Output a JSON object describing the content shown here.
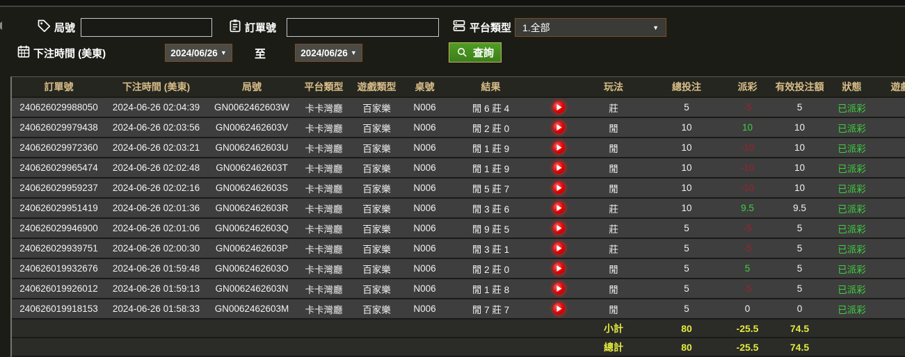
{
  "filters": {
    "game_no_label": "局號",
    "order_no_label": "訂單號",
    "platform_type_label": "平台類型",
    "platform_type_value": "1.全部",
    "bet_time_label": "下注時間 (美東)",
    "date_from": "2024/06/26",
    "to_label": "至",
    "date_to": "2024/06/26",
    "search_button_label": "查詢",
    "game_no_value": "",
    "order_no_value": ""
  },
  "table": {
    "columns": [
      "訂單號",
      "下注時間 (美東)",
      "局號",
      "平台類型",
      "遊戲類型",
      "桌號",
      "結果",
      "",
      "玩法",
      "總投注",
      "派彩",
      "有效投注額",
      "狀態",
      "遊戲"
    ],
    "column_keys": [
      "order_no",
      "bet_time",
      "game_no",
      "platform",
      "game_type",
      "table_no",
      "result",
      null,
      "play_method",
      "total_bet",
      "payout",
      "valid_bet",
      "status",
      "game"
    ],
    "rows": [
      {
        "order_no": "240626029988050",
        "bet_time": "2024-06-26 02:04:39",
        "game_no": "GN0062462603W",
        "platform": "卡卡灣廳",
        "game_type": "百家樂",
        "table_no": "N006",
        "result": "閒 6 莊 4",
        "play_method": "莊",
        "total_bet": "5",
        "payout": "-5",
        "valid_bet": "5",
        "status": "已派彩",
        "game": ""
      },
      {
        "order_no": "240626029979438",
        "bet_time": "2024-06-26 02:03:56",
        "game_no": "GN0062462603V",
        "platform": "卡卡灣廳",
        "game_type": "百家樂",
        "table_no": "N006",
        "result": "閒 2 莊 0",
        "play_method": "閒",
        "total_bet": "10",
        "payout": "10",
        "valid_bet": "10",
        "status": "已派彩",
        "game": ""
      },
      {
        "order_no": "240626029972360",
        "bet_time": "2024-06-26 02:03:21",
        "game_no": "GN0062462603U",
        "platform": "卡卡灣廳",
        "game_type": "百家樂",
        "table_no": "N006",
        "result": "閒 1 莊 9",
        "play_method": "閒",
        "total_bet": "10",
        "payout": "-10",
        "valid_bet": "10",
        "status": "已派彩",
        "game": ""
      },
      {
        "order_no": "240626029965474",
        "bet_time": "2024-06-26 02:02:48",
        "game_no": "GN0062462603T",
        "platform": "卡卡灣廳",
        "game_type": "百家樂",
        "table_no": "N006",
        "result": "閒 1 莊 9",
        "play_method": "閒",
        "total_bet": "10",
        "payout": "-10",
        "valid_bet": "10",
        "status": "已派彩",
        "game": ""
      },
      {
        "order_no": "240626029959237",
        "bet_time": "2024-06-26 02:02:16",
        "game_no": "GN0062462603S",
        "platform": "卡卡灣廳",
        "game_type": "百家樂",
        "table_no": "N006",
        "result": "閒 5 莊 7",
        "play_method": "閒",
        "total_bet": "10",
        "payout": "-10",
        "valid_bet": "10",
        "status": "已派彩",
        "game": ""
      },
      {
        "order_no": "240626029951419",
        "bet_time": "2024-06-26 02:01:36",
        "game_no": "GN0062462603R",
        "platform": "卡卡灣廳",
        "game_type": "百家樂",
        "table_no": "N006",
        "result": "閒 3 莊 6",
        "play_method": "莊",
        "total_bet": "10",
        "payout": "9.5",
        "valid_bet": "9.5",
        "status": "已派彩",
        "game": ""
      },
      {
        "order_no": "240626029946900",
        "bet_time": "2024-06-26 02:01:06",
        "game_no": "GN0062462603Q",
        "platform": "卡卡灣廳",
        "game_type": "百家樂",
        "table_no": "N006",
        "result": "閒 9 莊 5",
        "play_method": "莊",
        "total_bet": "5",
        "payout": "-5",
        "valid_bet": "5",
        "status": "已派彩",
        "game": ""
      },
      {
        "order_no": "240626029939751",
        "bet_time": "2024-06-26 02:00:30",
        "game_no": "GN0062462603P",
        "platform": "卡卡灣廳",
        "game_type": "百家樂",
        "table_no": "N006",
        "result": "閒 3 莊 1",
        "play_method": "莊",
        "total_bet": "5",
        "payout": "-5",
        "valid_bet": "5",
        "status": "已派彩",
        "game": ""
      },
      {
        "order_no": "240626019932676",
        "bet_time": "2024-06-26 01:59:48",
        "game_no": "GN0062462603O",
        "platform": "卡卡灣廳",
        "game_type": "百家樂",
        "table_no": "N006",
        "result": "閒 2 莊 0",
        "play_method": "閒",
        "total_bet": "5",
        "payout": "5",
        "valid_bet": "5",
        "status": "已派彩",
        "game": ""
      },
      {
        "order_no": "240626019926012",
        "bet_time": "2024-06-26 01:59:13",
        "game_no": "GN0062462603N",
        "platform": "卡卡灣廳",
        "game_type": "百家樂",
        "table_no": "N006",
        "result": "閒 1 莊 8",
        "play_method": "閒",
        "total_bet": "5",
        "payout": "-5",
        "valid_bet": "5",
        "status": "已派彩",
        "game": ""
      },
      {
        "order_no": "240626019918153",
        "bet_time": "2024-06-26 01:58:33",
        "game_no": "GN0062462603M",
        "platform": "卡卡灣廳",
        "game_type": "百家樂",
        "table_no": "N006",
        "result": "閒 7 莊 7",
        "play_method": "閒",
        "total_bet": "5",
        "payout": "0",
        "valid_bet": "0",
        "status": "已派彩",
        "game": ""
      }
    ],
    "summary_rows": [
      {
        "label": "小計",
        "total_bet": "80",
        "payout": "-25.5",
        "valid_bet": "74.5"
      },
      {
        "label": "總計",
        "total_bet": "80",
        "payout": "-25.5",
        "valid_bet": "74.5"
      }
    ]
  },
  "colors": {
    "header_text": "#d8bd88",
    "row_bg": "#3e3e3e",
    "status_green": "#3fd13f",
    "payout_negative": "#a02030",
    "payout_positive": "#3fd13f",
    "summary_yellow": "#e3eb3e",
    "button_green": "#45901f",
    "date_border": "#7d4f1f"
  }
}
